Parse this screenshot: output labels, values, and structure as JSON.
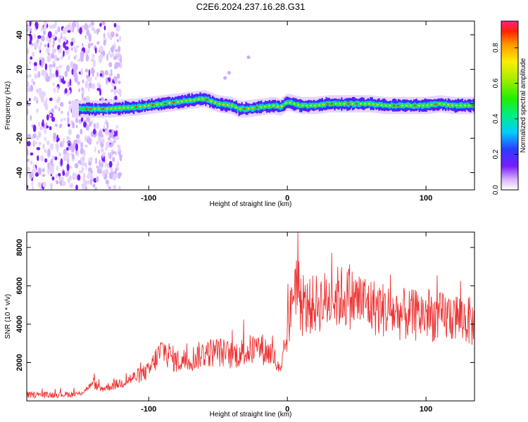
{
  "title": "C2E6.2024.237.16.28.G31",
  "chart_data": [
    {
      "type": "heatmap",
      "xlabel": "Height of straight line (km)",
      "ylabel": "Frequency (Hz)",
      "xlim": [
        -188,
        135
      ],
      "ylim": [
        -50,
        48
      ],
      "xticks": [
        -100,
        0,
        100
      ],
      "yticks": [
        -40,
        -20,
        0,
        20,
        40
      ],
      "colorbar": {
        "label": "Normalized spectral amplitude",
        "range": [
          0,
          0.95
        ],
        "ticks": [
          0.0,
          0.2,
          0.4,
          0.6,
          0.8
        ]
      },
      "ridge": {
        "x": [
          -150,
          -130,
          -110,
          -100,
          -90,
          -80,
          -70,
          -60,
          -50,
          -40,
          -35,
          -30,
          -20,
          -10,
          -5,
          0,
          10,
          20,
          30,
          40,
          50,
          60,
          70,
          80,
          90,
          100,
          110,
          120,
          135
        ],
        "freq": [
          -3,
          -3,
          -2,
          -1,
          0,
          1,
          2,
          3,
          0,
          -1,
          -3,
          -3,
          -2,
          -1,
          -2,
          1,
          -1,
          -1,
          0,
          0,
          0,
          0,
          -1,
          -1,
          -1,
          -1,
          0,
          -1,
          -1
        ]
      },
      "scatter_cloud_x_range": [
        -188,
        -120
      ]
    },
    {
      "type": "line",
      "xlabel": "Height of straight line (km)",
      "ylabel": "SNR (10 * v/v)",
      "xlim": [
        -188,
        135
      ],
      "ylim": [
        0,
        8800
      ],
      "xticks": [
        -100,
        0,
        100
      ],
      "yticks": [
        2000,
        4000,
        6000,
        8000
      ],
      "series": [
        {
          "color": "#ee3333",
          "x": [
            -188,
            -170,
            -150,
            -145,
            -140,
            -135,
            -120,
            -110,
            -100,
            -95,
            -90,
            -85,
            -80,
            -70,
            -60,
            -50,
            -40,
            -30,
            -20,
            -10,
            -5,
            0,
            3,
            5,
            8,
            10,
            20,
            30,
            40,
            50,
            55,
            60,
            70,
            80,
            90,
            100,
            110,
            120,
            130,
            135
          ],
          "y": [
            300,
            300,
            350,
            600,
            900,
            600,
            900,
            1200,
            1500,
            2100,
            2600,
            2300,
            2000,
            2100,
            2400,
            2500,
            2300,
            2500,
            2700,
            2300,
            1300,
            3400,
            4700,
            6200,
            5800,
            4600,
            4900,
            5100,
            5300,
            5100,
            5000,
            4800,
            4600,
            4400,
            4300,
            4400,
            4200,
            4300,
            4100,
            3800
          ]
        }
      ]
    }
  ]
}
